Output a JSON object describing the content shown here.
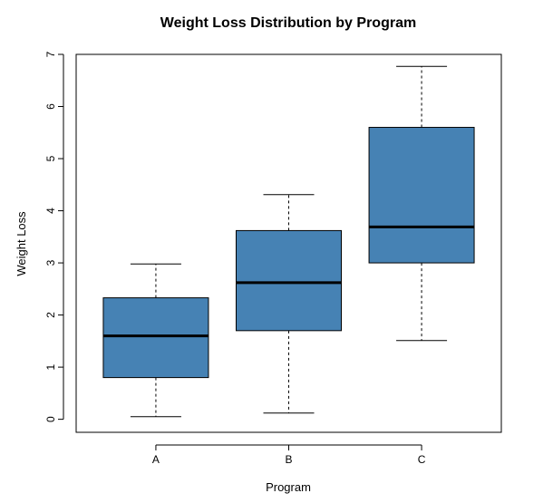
{
  "chart_data": {
    "type": "boxplot",
    "title": "Weight Loss Distribution by Program",
    "xlabel": "Program",
    "ylabel": "Weight Loss",
    "categories": [
      "A",
      "B",
      "C"
    ],
    "boxes": [
      {
        "category": "A",
        "min": 0.05,
        "q1": 0.8,
        "median": 1.6,
        "q3": 2.33,
        "max": 2.98
      },
      {
        "category": "B",
        "min": 0.12,
        "q1": 1.7,
        "median": 2.62,
        "q3": 3.62,
        "max": 4.31
      },
      {
        "category": "C",
        "min": 1.51,
        "q1": 3.0,
        "median": 3.69,
        "q3": 5.6,
        "max": 6.77
      }
    ],
    "y_ticks": [
      0,
      1,
      2,
      3,
      4,
      5,
      6,
      7
    ],
    "ylim": [
      -0.25,
      7
    ],
    "grid": false,
    "legend": "none",
    "box_fill": "#4682B4"
  }
}
